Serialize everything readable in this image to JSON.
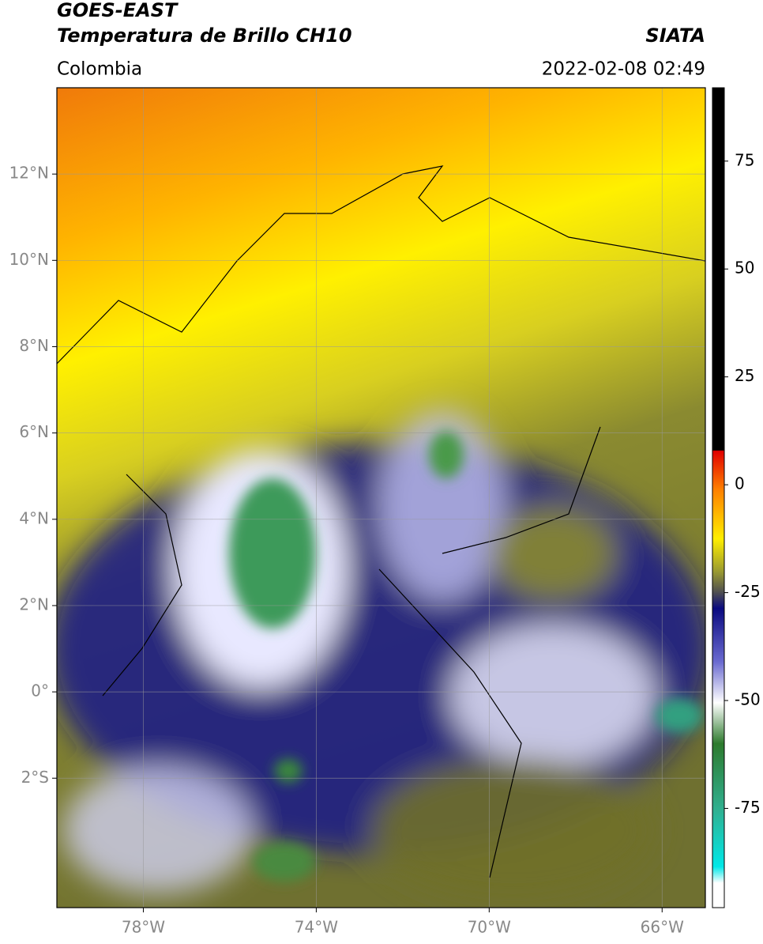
{
  "header": {
    "title": "GOES-EAST",
    "subtitle": "Temperatura de Brillo CH10",
    "source": "SIATA",
    "region": "Colombia",
    "datetime": "2022-02-08 02:49"
  },
  "map": {
    "lon_range": [
      -80,
      -65
    ],
    "lat_range": [
      -5,
      14
    ],
    "lon_ticks": [
      {
        "value": -78,
        "label": "78°W"
      },
      {
        "value": -74,
        "label": "74°W"
      },
      {
        "value": -70,
        "label": "70°W"
      },
      {
        "value": -66,
        "label": "66°W"
      }
    ],
    "lat_ticks": [
      {
        "value": 12,
        "label": "12°N"
      },
      {
        "value": 10,
        "label": "10°N"
      },
      {
        "value": 8,
        "label": "8°N"
      },
      {
        "value": 6,
        "label": "6°N"
      },
      {
        "value": 4,
        "label": "4°N"
      },
      {
        "value": 2,
        "label": "2°N"
      },
      {
        "value": 0,
        "label": "0°"
      },
      {
        "value": -2,
        "label": "2°S"
      }
    ]
  },
  "colorbar": {
    "range": [
      -98,
      92
    ],
    "ticks": [
      75,
      50,
      25,
      0,
      -25,
      -50,
      -75
    ]
  }
}
